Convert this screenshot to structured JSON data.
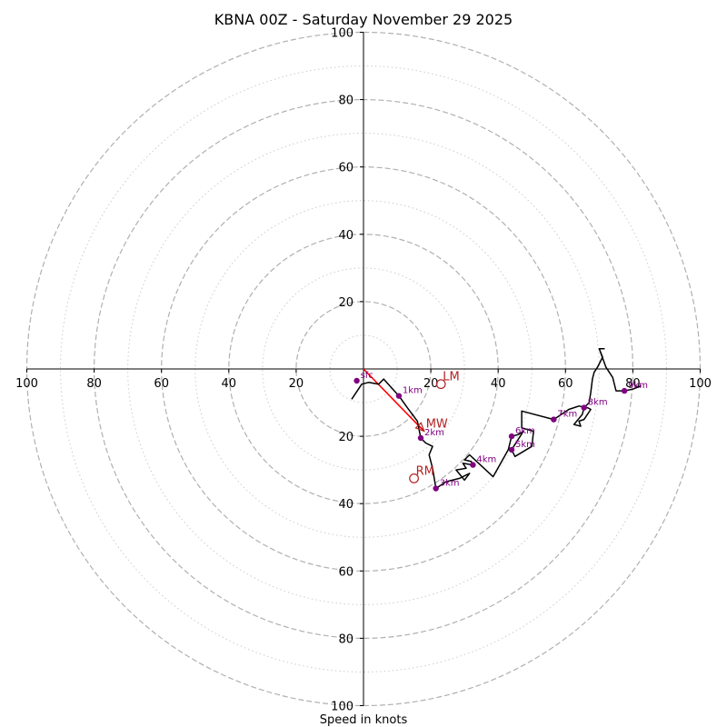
{
  "chart_data": {
    "type": "hodograph",
    "title": "KBNA 00Z - Saturday November 29 2025",
    "xlabel": "Speed in knots",
    "xlim": [
      -100,
      100
    ],
    "ylim": [
      -100,
      100
    ],
    "rings": {
      "major": [
        20,
        40,
        60,
        80,
        100
      ],
      "minor": [
        10,
        30,
        50,
        70,
        90
      ]
    },
    "x_tick_labels": [
      "100",
      "80",
      "60",
      "40",
      "20",
      "20",
      "40",
      "60",
      "80",
      "100"
    ],
    "x_tick_values": [
      -100,
      -80,
      -60,
      -40,
      -20,
      20,
      40,
      60,
      80,
      100
    ],
    "y_tick_labels_top": [
      "20",
      "40",
      "60",
      "80",
      "100"
    ],
    "y_tick_labels_bottom": [
      "20",
      "40",
      "60",
      "80",
      "100"
    ],
    "y_tick_values_top": [
      20,
      40,
      60,
      80,
      100
    ],
    "y_tick_values_bottom": [
      -20,
      -40,
      -60,
      -80,
      -100
    ],
    "hodograph_trace": [
      [
        -3.5,
        -9.0
      ],
      [
        -0.5,
        -4.5
      ],
      [
        1.5,
        -4.0
      ],
      [
        4.5,
        -4.5
      ],
      [
        6.0,
        -3.0
      ],
      [
        10.5,
        -8.0
      ],
      [
        13.0,
        -11.5
      ],
      [
        16.0,
        -15.5
      ],
      [
        17.0,
        -20.5
      ],
      [
        18.5,
        -22.0
      ],
      [
        20.5,
        -23.0
      ],
      [
        19.5,
        -25.5
      ],
      [
        20.5,
        -29.5
      ],
      [
        21.5,
        -35.5
      ],
      [
        24.5,
        -33.5
      ],
      [
        28.5,
        -32.5
      ],
      [
        31.5,
        -31.0
      ],
      [
        30.0,
        -33.0
      ],
      [
        27.5,
        -30.0
      ],
      [
        30.5,
        -29.5
      ],
      [
        29.5,
        -28.0
      ],
      [
        32.5,
        -28.5
      ],
      [
        32.0,
        -27.5
      ],
      [
        30.0,
        -27.0
      ],
      [
        31.5,
        -25.5
      ],
      [
        38.5,
        -32.0
      ],
      [
        43.0,
        -24.0
      ],
      [
        44.0,
        -20.0
      ],
      [
        46.0,
        -19.5
      ],
      [
        47.5,
        -18.5
      ],
      [
        44.0,
        -24.0
      ],
      [
        45.0,
        -26.0
      ],
      [
        50.0,
        -23.0
      ],
      [
        50.5,
        -18.5
      ],
      [
        47.0,
        -17.5
      ],
      [
        47.0,
        -12.5
      ],
      [
        56.5,
        -15.0
      ],
      [
        61.0,
        -12.0
      ],
      [
        64.0,
        -11.0
      ],
      [
        66.5,
        -11.5
      ],
      [
        67.5,
        -12.0
      ],
      [
        65.5,
        -15.0
      ],
      [
        64.0,
        -15.5
      ],
      [
        64.5,
        -17.0
      ],
      [
        62.5,
        -16.5
      ],
      [
        65.0,
        -13.5
      ],
      [
        65.5,
        -11.5
      ],
      [
        67.0,
        -10.0
      ],
      [
        67.5,
        -7.0
      ],
      [
        68.0,
        -3.0
      ],
      [
        68.5,
        -1.0
      ],
      [
        69.5,
        0.5
      ],
      [
        71.0,
        3.5
      ],
      [
        70.0,
        6.0
      ],
      [
        71.5,
        6.0
      ],
      [
        70.0,
        6.0
      ],
      [
        72.0,
        0.5
      ],
      [
        74.0,
        -2.5
      ],
      [
        75.0,
        -6.5
      ],
      [
        77.5,
        -6.5
      ],
      [
        80.0,
        -6.0
      ],
      [
        82.5,
        -5.0
      ]
    ],
    "height_markers": [
      {
        "label": "sfc",
        "u": -2.0,
        "v": -3.5
      },
      {
        "label": "1km",
        "u": 10.5,
        "v": -8.0
      },
      {
        "label": "2km",
        "u": 17.0,
        "v": -20.5
      },
      {
        "label": "3km",
        "u": 21.5,
        "v": -35.5
      },
      {
        "label": "4km",
        "u": 32.5,
        "v": -28.5
      },
      {
        "label": "5km",
        "u": 44.0,
        "v": -24.0
      },
      {
        "label": "6km",
        "u": 44.0,
        "v": -20.0
      },
      {
        "label": "7km",
        "u": 56.5,
        "v": -15.0
      },
      {
        "label": "8km",
        "u": 65.5,
        "v": -11.5
      },
      {
        "label": "9km",
        "u": 77.5,
        "v": -6.5
      }
    ],
    "storm_motion": [
      {
        "label": "LM",
        "u": 23.0,
        "v": -4.5,
        "marker": "circle"
      },
      {
        "label": "MW",
        "u": 18.0,
        "v": -18.5,
        "marker": "arrowhead"
      },
      {
        "label": "RM",
        "u": 15.0,
        "v": -32.5,
        "marker": "circle"
      }
    ],
    "bulk_shear_vector": {
      "from": [
        0,
        0
      ],
      "to": [
        18.0,
        -18.5
      ]
    },
    "colors": {
      "trace": "#000000",
      "height_marker": "#800080",
      "height_label": "#800080",
      "storm_motion": "#b22222",
      "shear_vector": "#ff0000",
      "major_ring": "#b0b0b0",
      "minor_ring": "#cccccc",
      "axis": "#000000"
    }
  }
}
